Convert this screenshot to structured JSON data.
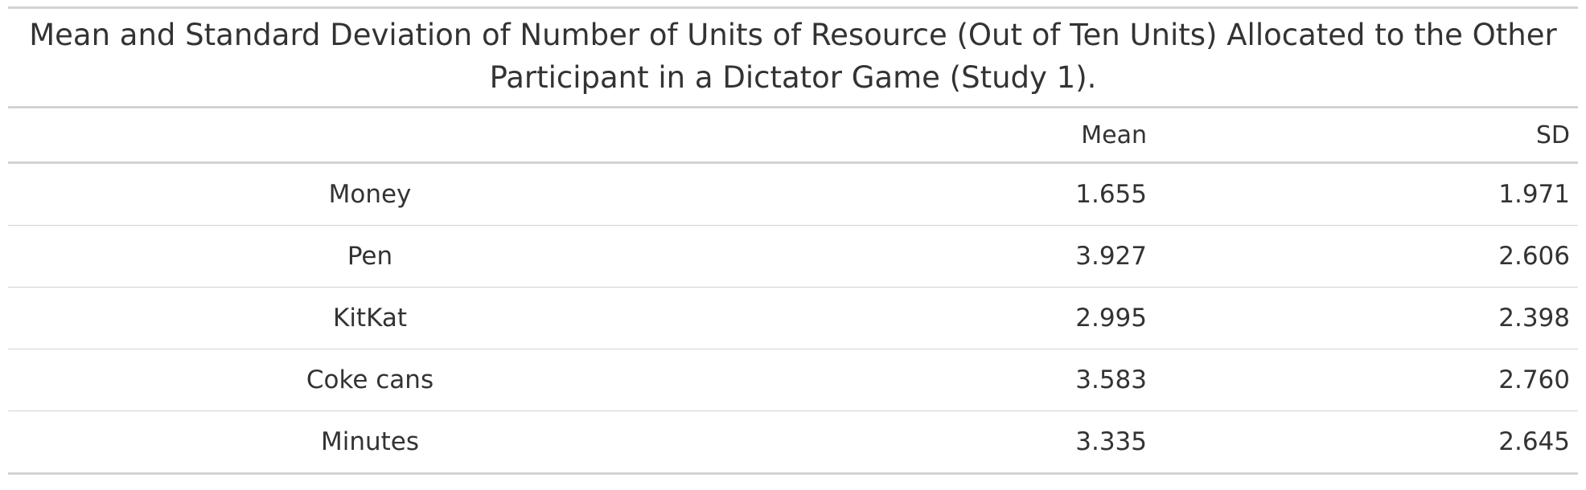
{
  "table": {
    "caption": "Mean and Standard Deviation of Number of Units of Resource (Out of Ten Units) Allocated to the Other Participant in a Dictator Game (Study 1).",
    "headers": [
      "",
      "Mean",
      "SD"
    ],
    "rows": [
      {
        "label": "Money",
        "mean": "1.655",
        "sd": "1.971"
      },
      {
        "label": "Pen",
        "mean": "3.927",
        "sd": "2.606"
      },
      {
        "label": "KitKat",
        "mean": "2.995",
        "sd": "2.398"
      },
      {
        "label": "Coke cans",
        "mean": "3.583",
        "sd": "2.760"
      },
      {
        "label": "Minutes",
        "mean": "3.335",
        "sd": "2.645"
      }
    ]
  }
}
